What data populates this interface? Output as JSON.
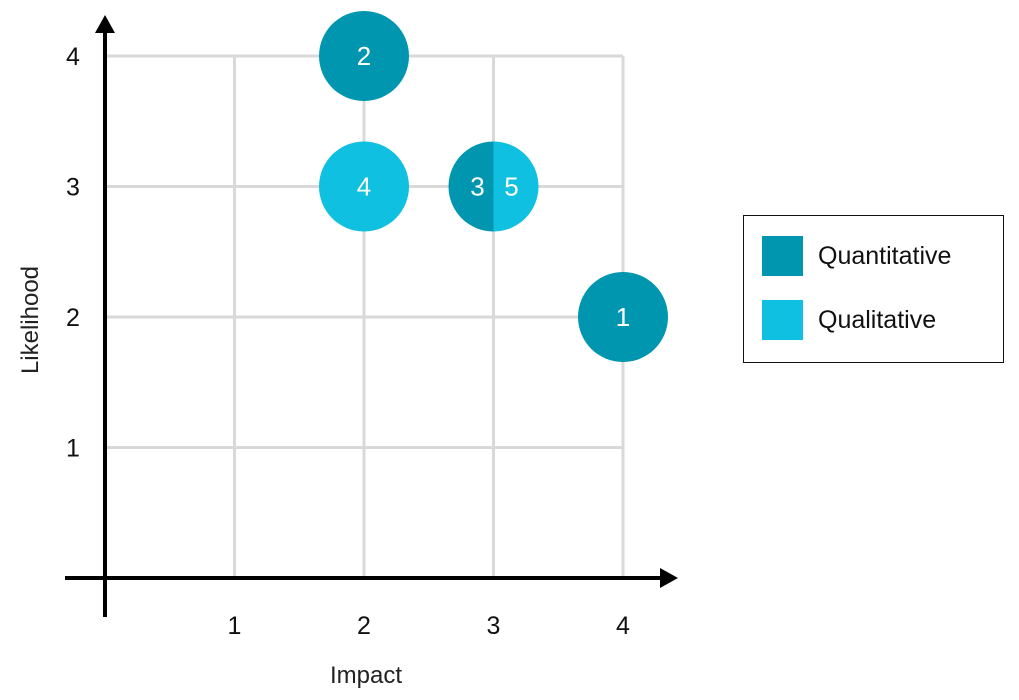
{
  "chart_data": {
    "type": "scatter",
    "title": "",
    "xlabel": "Impact",
    "ylabel": "Likelihood",
    "xlim": [
      0,
      4
    ],
    "ylim": [
      0,
      4
    ],
    "x_ticks": [
      "1",
      "2",
      "3",
      "4"
    ],
    "y_ticks": [
      "1",
      "2",
      "3",
      "4"
    ],
    "grid": true,
    "legend_position": "right",
    "series": [
      {
        "name": "Quantitative",
        "color": "#0096b0",
        "points": [
          {
            "label": "1",
            "x": 4,
            "y": 2
          },
          {
            "label": "2",
            "x": 2,
            "y": 4
          },
          {
            "label": "3",
            "x": 3,
            "y": 3
          }
        ]
      },
      {
        "name": "Qualitative",
        "color": "#10c0e0",
        "points": [
          {
            "label": "4",
            "x": 2,
            "y": 3
          },
          {
            "label": "5",
            "x": 3,
            "y": 3
          }
        ]
      }
    ]
  }
}
